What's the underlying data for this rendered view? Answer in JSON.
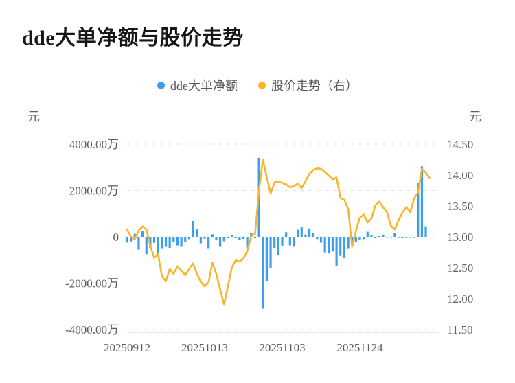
{
  "title": "dde大单净额与股价走势",
  "legend": {
    "items": [
      {
        "label": "dde大单净额",
        "color": "#3b9ef3"
      },
      {
        "label": "股价走势（右）",
        "color": "#fbb42a"
      }
    ]
  },
  "axes": {
    "left_unit": "元",
    "right_unit": "元",
    "left_ticks": [
      {
        "label": "4000.00万",
        "value": 4000
      },
      {
        "label": "2000.00万",
        "value": 2000
      },
      {
        "label": "0",
        "value": 0
      },
      {
        "label": "-2000.00万",
        "value": -2000
      },
      {
        "label": "-4000.00万",
        "value": -4000
      }
    ],
    "right_ticks": [
      {
        "label": "14.50",
        "value": 14.5
      },
      {
        "label": "14.00",
        "value": 14.0
      },
      {
        "label": "13.50",
        "value": 13.5
      },
      {
        "label": "13.00",
        "value": 13.0
      },
      {
        "label": "12.50",
        "value": 12.5
      },
      {
        "label": "12.00",
        "value": 12.0
      },
      {
        "label": "11.50",
        "value": 11.5
      }
    ],
    "x_ticks": [
      {
        "label": "20250912",
        "index": 0
      },
      {
        "label": "20251013",
        "index": 20
      },
      {
        "label": "20251103",
        "index": 40
      },
      {
        "label": "20251124",
        "index": 60
      }
    ]
  },
  "chart_data": {
    "type": "bar+line",
    "title": "dde大单净额与股价走势",
    "n_points": 79,
    "x_labels": [
      "20250912",
      "20251013",
      "20251103",
      "20251124"
    ],
    "x_label_indices": [
      0,
      20,
      40,
      60
    ],
    "left_axis_label": "元",
    "right_axis_label": "元",
    "left_ylim_wan": [
      -4000,
      4000
    ],
    "right_ylim": [
      11.5,
      14.5
    ],
    "grid": "dashed-horizontal",
    "legend_position": "top-center",
    "series": [
      {
        "name": "dde大单净额",
        "type": "bar",
        "y_axis": "left",
        "unit": "万元",
        "color": "#3b9ef3",
        "values": [
          -250,
          -200,
          130,
          -550,
          260,
          -750,
          -480,
          -260,
          -770,
          -520,
          -430,
          -480,
          -220,
          -370,
          -430,
          -220,
          -100,
          680,
          340,
          -280,
          -80,
          -520,
          110,
          -130,
          -430,
          -190,
          -60,
          60,
          -60,
          -130,
          -90,
          -480,
          170,
          -60,
          3410,
          -3100,
          -1900,
          -1360,
          -500,
          -770,
          -380,
          200,
          -370,
          -430,
          310,
          410,
          100,
          360,
          150,
          -100,
          -250,
          -670,
          -720,
          -630,
          -1260,
          -820,
          -920,
          -520,
          -280,
          -230,
          -150,
          -100,
          220,
          60,
          -60,
          30,
          60,
          -40,
          -40,
          160,
          -50,
          -60,
          -50,
          -40,
          -50,
          2330,
          3040,
          460,
          null
        ]
      },
      {
        "name": "股价走势（右）",
        "type": "line",
        "y_axis": "right",
        "unit": "元",
        "color": "#fbb42a",
        "values": [
          13.12,
          13.0,
          12.96,
          13.1,
          13.17,
          13.12,
          12.85,
          12.66,
          12.72,
          12.36,
          12.28,
          12.48,
          12.4,
          12.52,
          12.45,
          12.38,
          12.48,
          12.57,
          12.4,
          12.27,
          12.2,
          12.26,
          12.58,
          12.4,
          12.15,
          11.9,
          12.2,
          12.5,
          12.62,
          12.6,
          12.65,
          12.77,
          13.01,
          13.05,
          13.75,
          14.25,
          13.97,
          13.7,
          13.88,
          13.9,
          13.87,
          13.85,
          13.8,
          13.82,
          13.86,
          13.79,
          13.9,
          14.02,
          14.08,
          14.11,
          14.1,
          14.05,
          13.99,
          13.93,
          13.96,
          13.63,
          13.6,
          13.45,
          12.84,
          13.1,
          13.31,
          13.36,
          13.23,
          13.3,
          13.51,
          13.57,
          13.48,
          13.4,
          13.18,
          13.12,
          13.27,
          13.4,
          13.48,
          13.4,
          13.62,
          13.72,
          14.1,
          14.04,
          13.95
        ]
      }
    ]
  }
}
